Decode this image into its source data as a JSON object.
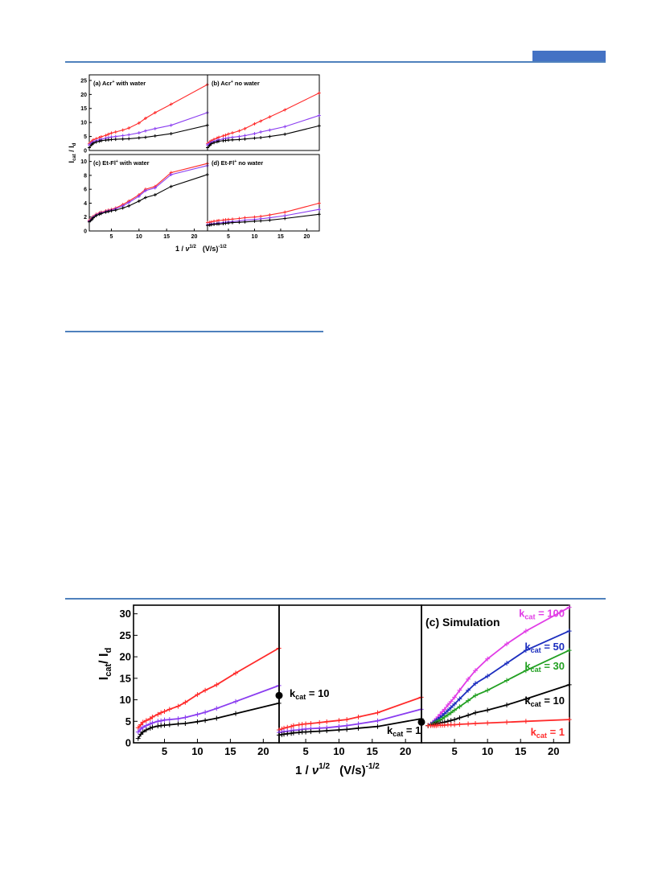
{
  "colors": {
    "rule": "#4f81bd",
    "tab": "#4472c4",
    "red": "#ff2a2a",
    "purple": "#8a3cf0",
    "black": "#000000",
    "magenta": "#e13ce6",
    "blue": "#1c2ebf",
    "green": "#22a022"
  },
  "figure1": {
    "ylabel_main": "I",
    "ylabel_sub1": "cat",
    "ylabel_sep": " / I",
    "ylabel_sub2": "d",
    "xlabel_main": "1 / ",
    "xlabel_nu": "ν",
    "xlabel_exp": "1/2",
    "xlabel_units": "(V/s)",
    "xlabel_units_exp": "-1/2"
  },
  "figure2": {
    "ylabel_main": "I",
    "ylabel_sub1": "cat",
    "ylabel_sep": "/ I",
    "ylabel_sub2": "d",
    "xlabel_main": "1 / ",
    "xlabel_nu": "ν",
    "xlabel_exp": "1/2",
    "xlabel_units": "(V/s)",
    "xlabel_units_exp": "-1/2"
  },
  "chart_data": [
    {
      "type": "line",
      "title": "(a) Acr",
      "title_sup": "+",
      "title_rest": " with water",
      "xlim": [
        1,
        22.4
      ],
      "ylim": [
        0,
        27
      ],
      "yticks": [
        0,
        5,
        10,
        15,
        20,
        25
      ],
      "xticks": [],
      "x": [
        1.0,
        1.41,
        1.73,
        2.24,
        2.83,
        3.16,
        4.0,
        4.47,
        5.0,
        5.77,
        7.07,
        8.16,
        10.0,
        11.18,
        12.91,
        15.81,
        22.36
      ],
      "series": [
        {
          "color": "red",
          "values": [
            2.5,
            3.2,
            3.8,
            4.2,
            4.6,
            4.9,
            5.4,
            5.8,
            6.2,
            6.6,
            7.3,
            8.0,
            9.8,
            11.5,
            13.5,
            16.5,
            23.5
          ]
        },
        {
          "color": "purple",
          "values": [
            2.0,
            2.7,
            3.1,
            3.5,
            3.8,
            4.0,
            4.4,
            4.6,
            4.8,
            5.0,
            5.3,
            5.6,
            6.3,
            7.0,
            7.8,
            9.0,
            13.5
          ]
        },
        {
          "color": "black",
          "values": [
            1.0,
            2.0,
            2.6,
            3.0,
            3.3,
            3.5,
            3.7,
            3.8,
            3.9,
            4.0,
            4.1,
            4.2,
            4.5,
            4.7,
            5.2,
            6.0,
            9.0
          ]
        }
      ]
    },
    {
      "type": "line",
      "title": "(b) Acr",
      "title_sup": "+",
      "title_rest": " no water",
      "xlim": [
        1,
        22.4
      ],
      "ylim": [
        0,
        27
      ],
      "yticks": [],
      "xticks": [],
      "x": [
        1.0,
        1.41,
        1.73,
        2.24,
        2.83,
        3.16,
        4.0,
        4.47,
        5.0,
        5.77,
        7.07,
        8.16,
        10.0,
        11.18,
        12.91,
        15.81,
        22.36
      ],
      "series": [
        {
          "color": "red",
          "values": [
            2.5,
            3.0,
            3.5,
            4.0,
            4.4,
            4.7,
            5.2,
            5.5,
            5.9,
            6.3,
            7.0,
            7.8,
            9.5,
            10.5,
            12.0,
            14.5,
            20.5
          ]
        },
        {
          "color": "purple",
          "values": [
            2.0,
            2.5,
            2.9,
            3.3,
            3.6,
            3.8,
            4.1,
            4.3,
            4.5,
            4.7,
            5.0,
            5.3,
            6.0,
            6.6,
            7.3,
            8.5,
            12.5
          ]
        },
        {
          "color": "black",
          "values": [
            1.0,
            1.8,
            2.4,
            2.8,
            3.1,
            3.3,
            3.5,
            3.6,
            3.7,
            3.8,
            3.9,
            4.1,
            4.4,
            4.6,
            5.0,
            5.8,
            8.8
          ]
        }
      ]
    },
    {
      "type": "line",
      "title": "(c) Et-Fl",
      "title_sup": "+",
      "title_rest": " with water",
      "xlim": [
        1,
        22.4
      ],
      "ylim": [
        0,
        11
      ],
      "yticks": [
        0,
        2,
        4,
        6,
        8,
        10
      ],
      "xticks": [
        5,
        10,
        15,
        20
      ],
      "x": [
        1.0,
        1.41,
        1.73,
        2.24,
        2.83,
        3.16,
        4.0,
        4.47,
        5.0,
        5.77,
        7.07,
        8.16,
        10.0,
        11.18,
        12.91,
        15.81,
        22.36
      ],
      "series": [
        {
          "color": "red",
          "values": [
            1.5,
            1.8,
            2.1,
            2.4,
            2.6,
            2.7,
            2.9,
            3.0,
            3.1,
            3.3,
            3.8,
            4.3,
            5.2,
            6.0,
            6.4,
            8.4,
            9.7
          ]
        },
        {
          "color": "purple",
          "values": [
            1.4,
            1.7,
            2.0,
            2.3,
            2.5,
            2.6,
            2.8,
            2.9,
            3.0,
            3.2,
            3.6,
            4.1,
            5.0,
            5.8,
            6.2,
            8.1,
            9.4
          ]
        },
        {
          "color": "black",
          "values": [
            1.3,
            1.6,
            1.9,
            2.2,
            2.4,
            2.5,
            2.7,
            2.8,
            2.9,
            3.0,
            3.3,
            3.6,
            4.3,
            4.8,
            5.2,
            6.4,
            8.1
          ]
        }
      ]
    },
    {
      "type": "line",
      "title": "(d) Et-Fl",
      "title_sup": "+",
      "title_rest": " no water",
      "xlim": [
        1,
        22.4
      ],
      "ylim": [
        0,
        11
      ],
      "yticks": [],
      "xticks": [
        5,
        10,
        15,
        20
      ],
      "x": [
        1.0,
        1.41,
        1.73,
        2.24,
        2.83,
        3.16,
        4.0,
        4.47,
        5.0,
        5.77,
        7.07,
        8.16,
        10.0,
        11.18,
        12.91,
        15.81,
        22.36
      ],
      "series": [
        {
          "color": "red",
          "values": [
            1.2,
            1.25,
            1.3,
            1.4,
            1.45,
            1.5,
            1.55,
            1.6,
            1.65,
            1.7,
            1.8,
            1.9,
            2.0,
            2.1,
            2.3,
            2.7,
            4.0
          ]
        },
        {
          "color": "purple",
          "values": [
            0.9,
            0.95,
            1.0,
            1.05,
            1.1,
            1.15,
            1.2,
            1.25,
            1.3,
            1.35,
            1.45,
            1.55,
            1.65,
            1.75,
            1.9,
            2.2,
            3.1
          ]
        },
        {
          "color": "black",
          "values": [
            0.8,
            0.85,
            0.9,
            0.95,
            1.0,
            1.0,
            1.05,
            1.1,
            1.15,
            1.2,
            1.25,
            1.3,
            1.4,
            1.45,
            1.55,
            1.8,
            2.4
          ]
        }
      ]
    },
    {
      "type": "line",
      "title": "",
      "xlim": [
        0.3,
        22.4
      ],
      "ylim": [
        0,
        32
      ],
      "yticks": [
        0,
        5,
        10,
        15,
        20,
        25,
        30
      ],
      "xticks": [
        5,
        10,
        15,
        20
      ],
      "x": [
        1.0,
        1.41,
        1.73,
        2.24,
        2.83,
        3.16,
        4.0,
        4.47,
        5.0,
        5.77,
        7.07,
        8.16,
        10.0,
        11.18,
        12.91,
        15.81,
        22.36
      ],
      "series": [
        {
          "color": "red",
          "values": [
            3.5,
            4.2,
            4.8,
            5.2,
            5.6,
            6.0,
            6.6,
            7.0,
            7.3,
            7.8,
            8.5,
            9.4,
            11.2,
            12.2,
            13.5,
            16.2,
            22.0
          ]
        },
        {
          "color": "purple",
          "values": [
            2.5,
            3.2,
            3.6,
            4.0,
            4.4,
            4.6,
            5.0,
            5.1,
            5.3,
            5.4,
            5.6,
            5.9,
            6.6,
            7.1,
            8.0,
            9.6,
            13.3
          ]
        },
        {
          "color": "black",
          "values": [
            1.0,
            2.0,
            2.5,
            3.0,
            3.4,
            3.6,
            3.9,
            4.0,
            4.1,
            4.2,
            4.4,
            4.5,
            4.9,
            5.2,
            5.7,
            6.8,
            9.2
          ]
        }
      ],
      "annotation": "k",
      "annotation_sub": "cat",
      "annotation_val": " = 10",
      "marker_y": 11
    },
    {
      "type": "line",
      "title": "",
      "xlim": [
        1,
        22.4
      ],
      "ylim": [
        0,
        32
      ],
      "yticks": [],
      "xticks": [
        5,
        10,
        15,
        20
      ],
      "x": [
        1.0,
        1.41,
        1.73,
        2.24,
        2.83,
        3.16,
        4.0,
        4.47,
        5.0,
        5.77,
        7.07,
        8.16,
        10.0,
        11.18,
        12.91,
        15.81,
        22.36
      ],
      "series": [
        {
          "color": "red",
          "values": [
            3.0,
            3.2,
            3.4,
            3.6,
            3.8,
            4.0,
            4.2,
            4.3,
            4.4,
            4.5,
            4.7,
            4.9,
            5.2,
            5.4,
            6.0,
            7.0,
            10.6
          ]
        },
        {
          "color": "purple",
          "values": [
            2.4,
            2.5,
            2.6,
            2.7,
            2.8,
            2.9,
            3.0,
            3.1,
            3.2,
            3.3,
            3.4,
            3.5,
            3.8,
            4.0,
            4.4,
            5.1,
            7.8
          ]
        },
        {
          "color": "black",
          "values": [
            1.8,
            1.9,
            2.0,
            2.1,
            2.2,
            2.3,
            2.4,
            2.5,
            2.5,
            2.6,
            2.7,
            2.8,
            3.0,
            3.1,
            3.4,
            3.8,
            5.6
          ]
        }
      ],
      "annotation": "k",
      "annotation_sub": "cat",
      "annotation_val": " = 1",
      "marker_y": 4.8
    },
    {
      "type": "line",
      "title": "(c) Simulation",
      "xlim": [
        0,
        22.4
      ],
      "ylim": [
        0,
        32
      ],
      "yticks": [],
      "xticks": [
        5,
        10,
        15,
        20
      ],
      "x": [
        1.0,
        1.41,
        1.73,
        2.0,
        2.24,
        2.5,
        2.83,
        3.16,
        3.5,
        4.0,
        4.47,
        5.0,
        5.77,
        7.07,
        8.16,
        10.0,
        12.91,
        15.81,
        22.36
      ],
      "series": [
        {
          "name": "k",
          "name_sub": "cat",
          "name_val": " = 100",
          "color": "magenta",
          "values": [
            4.0,
            4.4,
            4.8,
            5.2,
            5.6,
            6.0,
            6.6,
            7.2,
            7.8,
            8.8,
            9.6,
            10.6,
            12.2,
            14.8,
            16.8,
            19.5,
            23.0,
            26.0,
            31.5
          ]
        },
        {
          "name": "k",
          "name_sub": "cat",
          "name_val": " = 50",
          "color": "blue",
          "values": [
            4.0,
            4.3,
            4.6,
            4.9,
            5.2,
            5.5,
            5.9,
            6.3,
            6.8,
            7.5,
            8.2,
            9.0,
            10.2,
            12.2,
            13.8,
            15.5,
            18.5,
            21.5,
            26.0
          ]
        },
        {
          "name": "k",
          "name_sub": "cat",
          "name_val": " = 30",
          "color": "green",
          "values": [
            4.0,
            4.2,
            4.4,
            4.6,
            4.8,
            5.0,
            5.3,
            5.6,
            6.0,
            6.5,
            7.0,
            7.6,
            8.4,
            9.8,
            11.0,
            12.2,
            14.5,
            16.8,
            21.5
          ]
        },
        {
          "name": "k",
          "name_sub": "cat",
          "name_val": " = 10",
          "color": "black",
          "values": [
            4.0,
            4.1,
            4.2,
            4.3,
            4.4,
            4.5,
            4.6,
            4.7,
            4.8,
            5.0,
            5.2,
            5.4,
            5.8,
            6.4,
            7.0,
            7.6,
            8.8,
            10.2,
            13.5
          ]
        },
        {
          "name": "k",
          "name_sub": "cat",
          "name_val": " = 1",
          "color": "red",
          "values": [
            4.0,
            4.0,
            4.0,
            4.0,
            4.0,
            4.1,
            4.1,
            4.1,
            4.1,
            4.2,
            4.2,
            4.2,
            4.3,
            4.4,
            4.5,
            4.6,
            4.8,
            5.0,
            5.4
          ]
        }
      ]
    }
  ]
}
